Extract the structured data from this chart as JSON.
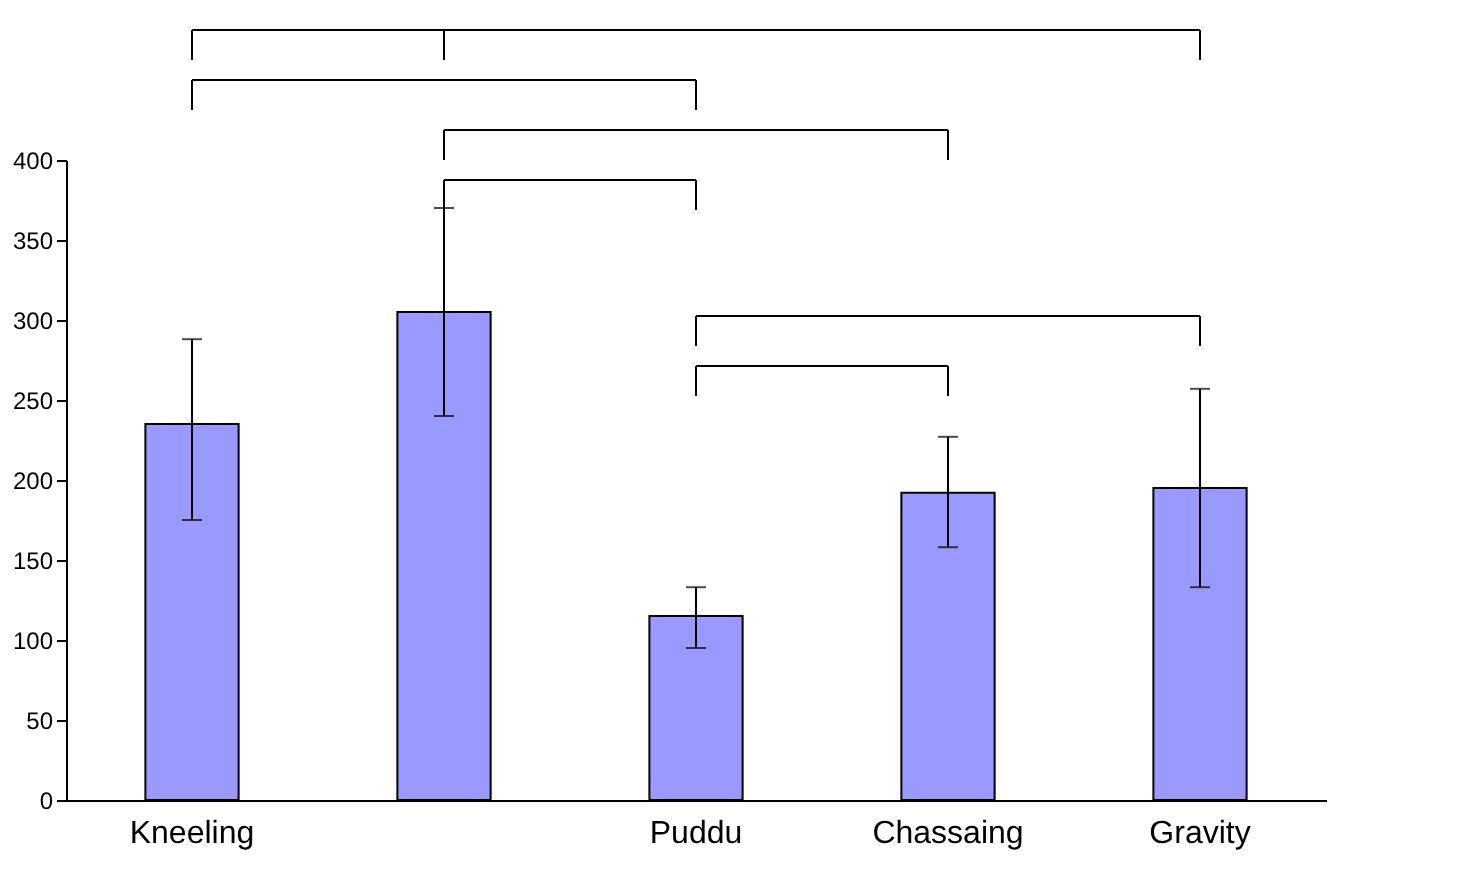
{
  "chart_data": {
    "type": "bar",
    "categories": [
      "Kneeling",
      null,
      "Puddu",
      "Chassaing",
      "Gravity"
    ],
    "values": [
      235,
      305,
      115,
      192,
      195
    ],
    "errors": [
      [
        175,
        288
      ],
      [
        240,
        370
      ],
      [
        95,
        133
      ],
      [
        158,
        227
      ],
      [
        133,
        257
      ]
    ],
    "color": "#9999ff",
    "ylim": [
      0,
      400
    ],
    "yticks": [
      0,
      50,
      100,
      150,
      200,
      250,
      300,
      350,
      400
    ],
    "grid": false
  }
}
